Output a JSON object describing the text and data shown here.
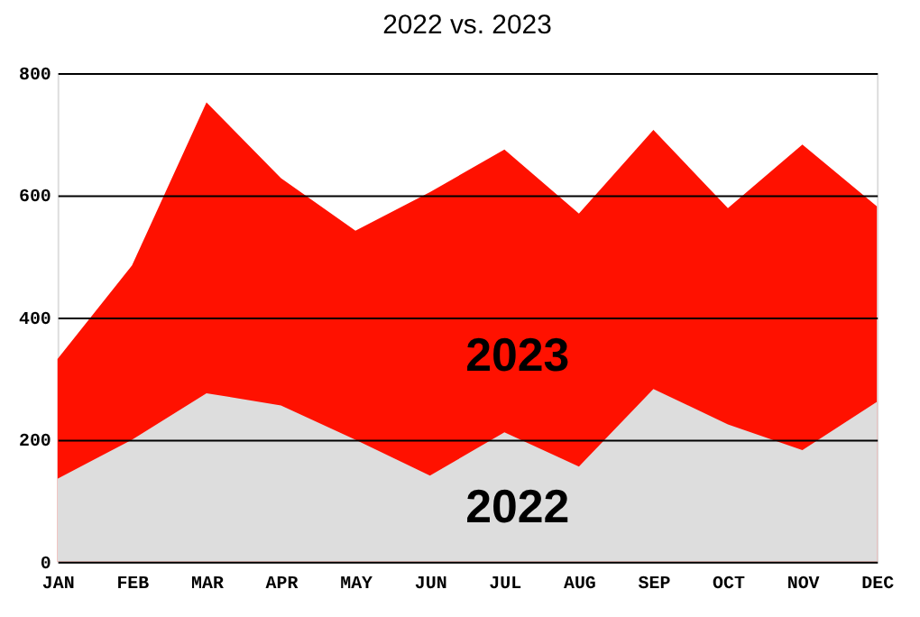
{
  "chart_data": {
    "type": "area",
    "title": "2022 vs. 2023",
    "categories": [
      "JAN",
      "FEB",
      "MAR",
      "APR",
      "MAY",
      "JUN",
      "JUL",
      "AUG",
      "SEP",
      "OCT",
      "NOV",
      "DEC"
    ],
    "series": [
      {
        "name": "2023",
        "color": "#ff1100",
        "values": [
          332,
          485,
          752,
          628,
          542,
          605,
          675,
          570,
          707,
          579,
          683,
          582
        ]
      },
      {
        "name": "2022",
        "color": "#dddddd",
        "values": [
          136,
          200,
          276,
          256,
          200,
          141,
          212,
          156,
          283,
          225,
          183,
          262
        ]
      }
    ],
    "ylim": [
      0,
      800
    ],
    "yticks": [
      0,
      200,
      400,
      600,
      800
    ],
    "grid": "y"
  }
}
